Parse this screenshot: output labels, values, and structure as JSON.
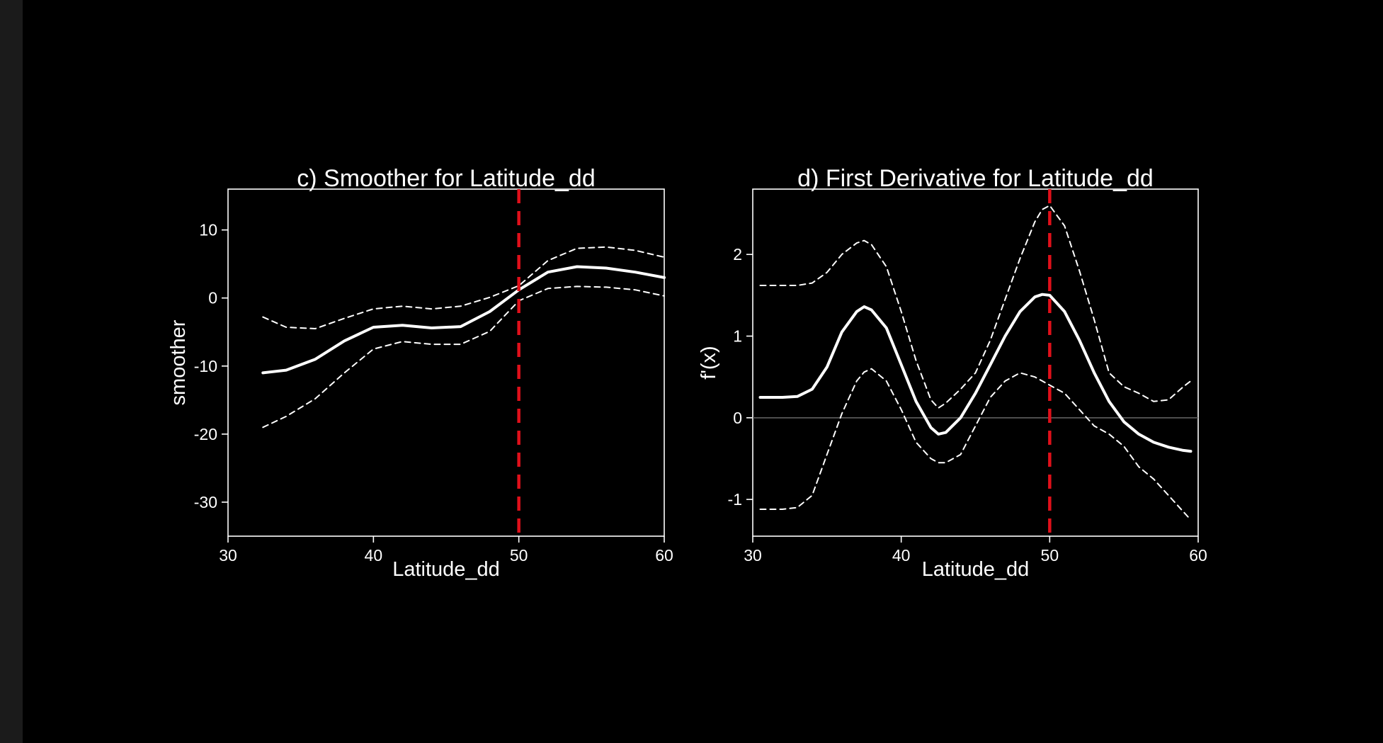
{
  "colors": {
    "background": "#000000",
    "line": "#ffffff",
    "vline": "#e0101a",
    "zeroline": "#666666"
  },
  "chart_data": [
    {
      "type": "line",
      "title": "c) Smoother for Latitude_dd",
      "xlabel": "Latitude_dd",
      "ylabel": "smoother",
      "xlim": [
        30,
        60
      ],
      "ylim": [
        -35,
        16
      ],
      "xticks": [
        "30",
        "40",
        "50",
        "60"
      ],
      "yticks": [
        "10",
        "0",
        "-10",
        "-20",
        "-30"
      ],
      "vline": 50,
      "zero_line": false,
      "grid": false,
      "series": [
        {
          "role": "fit",
          "x": [
            32.4,
            34,
            36,
            38,
            40,
            42,
            44,
            46,
            48,
            50,
            52,
            54,
            56,
            58,
            60
          ],
          "y": [
            -11,
            -10.6,
            -9,
            -6.3,
            -4.3,
            -4,
            -4.4,
            -4.2,
            -2,
            1.2,
            3.8,
            4.6,
            4.4,
            3.8,
            3
          ]
        },
        {
          "role": "upper",
          "x": [
            32.4,
            34,
            36,
            38,
            40,
            42,
            44,
            46,
            48,
            50,
            52,
            54,
            56,
            58,
            60
          ],
          "y": [
            -2.8,
            -4.3,
            -4.5,
            -3,
            -1.6,
            -1.2,
            -1.6,
            -1.2,
            0.1,
            1.8,
            5.5,
            7.3,
            7.5,
            7,
            6
          ]
        },
        {
          "role": "lower",
          "x": [
            32.4,
            34,
            36,
            38,
            40,
            42,
            44,
            46,
            48,
            50,
            52,
            54,
            56,
            58,
            60
          ],
          "y": [
            -19,
            -17.4,
            -14.8,
            -11,
            -7.5,
            -6.4,
            -6.8,
            -6.8,
            -4.9,
            -0.4,
            1.4,
            1.7,
            1.6,
            1.2,
            0.3
          ]
        }
      ]
    },
    {
      "type": "line",
      "title": "d) First Derivative for Latitude_dd",
      "xlabel": "Latitude_dd",
      "ylabel": "f'(x)",
      "xlim": [
        30,
        60
      ],
      "ylim": [
        -1.45,
        2.8
      ],
      "xticks": [
        "30",
        "40",
        "50",
        "60"
      ],
      "yticks": [
        "2",
        "1",
        "0",
        "-1"
      ],
      "vline": 50,
      "zero_line": true,
      "grid": false,
      "series": [
        {
          "role": "fit",
          "x": [
            30.5,
            32,
            33,
            34,
            35,
            36,
            37,
            37.5,
            38,
            39,
            40,
            41,
            42,
            42.5,
            43,
            44,
            45,
            46,
            47,
            48,
            49,
            49.5,
            50,
            51,
            52,
            53,
            54,
            55,
            56,
            57,
            58,
            59,
            59.5
          ],
          "y": [
            0.25,
            0.25,
            0.26,
            0.35,
            0.62,
            1.05,
            1.3,
            1.36,
            1.32,
            1.1,
            0.65,
            0.2,
            -0.12,
            -0.2,
            -0.18,
            0,
            0.3,
            0.65,
            1.0,
            1.3,
            1.48,
            1.51,
            1.5,
            1.3,
            0.95,
            0.55,
            0.2,
            -0.05,
            -0.2,
            -0.3,
            -0.36,
            -0.4,
            -0.41
          ]
        },
        {
          "role": "upper",
          "x": [
            30.5,
            32,
            33,
            34,
            35,
            36,
            37,
            37.5,
            38,
            39,
            40,
            41,
            42,
            42.5,
            43,
            44,
            45,
            46,
            47,
            48,
            49,
            49.5,
            50,
            51,
            52,
            53,
            54,
            55,
            56,
            57,
            58,
            59,
            59.5
          ],
          "y": [
            1.62,
            1.62,
            1.62,
            1.65,
            1.78,
            2.0,
            2.14,
            2.17,
            2.12,
            1.85,
            1.3,
            0.7,
            0.22,
            0.12,
            0.18,
            0.35,
            0.55,
            0.95,
            1.45,
            1.95,
            2.4,
            2.55,
            2.6,
            2.35,
            1.8,
            1.2,
            0.55,
            0.38,
            0.3,
            0.2,
            0.22,
            0.38,
            0.45
          ]
        },
        {
          "role": "lower",
          "x": [
            30.5,
            32,
            33,
            34,
            35,
            36,
            37,
            37.5,
            38,
            39,
            40,
            41,
            42,
            42.5,
            43,
            44,
            45,
            46,
            47,
            48,
            49,
            49.5,
            50,
            51,
            52,
            53,
            54,
            55,
            56,
            57,
            58,
            59,
            59.5
          ],
          "y": [
            -1.12,
            -1.12,
            -1.1,
            -0.95,
            -0.45,
            0.05,
            0.45,
            0.56,
            0.6,
            0.45,
            0.1,
            -0.3,
            -0.5,
            -0.55,
            -0.55,
            -0.45,
            -0.1,
            0.25,
            0.45,
            0.55,
            0.5,
            0.45,
            0.4,
            0.3,
            0.1,
            -0.1,
            -0.2,
            -0.35,
            -0.6,
            -0.75,
            -0.95,
            -1.15,
            -1.25
          ]
        }
      ]
    }
  ]
}
